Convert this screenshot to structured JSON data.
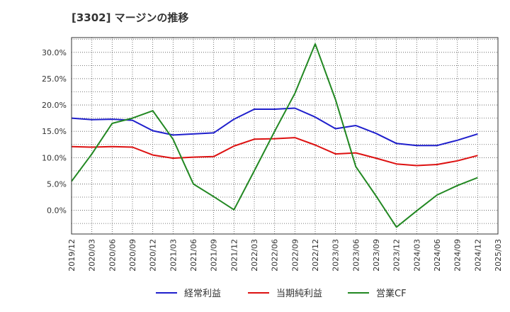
{
  "chart_data": {
    "type": "line",
    "title": "[3302]  マージンの推移",
    "xlabel": "",
    "ylabel": "",
    "x": [
      "2019/12",
      "2020/03",
      "2020/06",
      "2020/09",
      "2020/12",
      "2021/03",
      "2021/06",
      "2021/09",
      "2021/12",
      "2022/03",
      "2022/06",
      "2022/09",
      "2022/12",
      "2023/03",
      "2023/06",
      "2023/09",
      "2023/12",
      "2024/03",
      "2024/06",
      "2024/09",
      "2024/12",
      "2025/03"
    ],
    "y_ticks": [
      "30.0%",
      "25.0%",
      "20.0%",
      "15.0%",
      "10.0%",
      "5.0%",
      "0.0%"
    ],
    "y_tick_values": [
      30,
      25,
      20,
      15,
      10,
      5,
      0
    ],
    "ylim": [
      -4.5,
      32.8
    ],
    "grid": true,
    "legend_position": "bottom",
    "series": [
      {
        "name": "経常利益",
        "color": "#1f1fcc",
        "points": [
          [
            "2019/12",
            17.5
          ],
          [
            "2020/03",
            17.2
          ],
          [
            "2020/06",
            17.3
          ],
          [
            "2020/09",
            17.1
          ],
          [
            "2020/12",
            15.1
          ],
          [
            "2021/03",
            14.3
          ],
          [
            "2021/06",
            14.5
          ],
          [
            "2021/09",
            14.7
          ],
          [
            "2021/12",
            17.3
          ],
          [
            "2022/03",
            19.2
          ],
          [
            "2022/06",
            19.2
          ],
          [
            "2022/09",
            19.4
          ],
          [
            "2022/12",
            17.7
          ],
          [
            "2023/03",
            15.5
          ],
          [
            "2023/06",
            16.1
          ],
          [
            "2023/09",
            14.6
          ],
          [
            "2023/12",
            12.7
          ],
          [
            "2024/03",
            12.3
          ],
          [
            "2024/06",
            12.3
          ],
          [
            "2024/09",
            13.3
          ],
          [
            "2024/12",
            14.5
          ]
        ]
      },
      {
        "name": "当期純利益",
        "color": "#dd1111",
        "points": [
          [
            "2019/12",
            12.1
          ],
          [
            "2020/03",
            12.0
          ],
          [
            "2020/06",
            12.1
          ],
          [
            "2020/09",
            12.0
          ],
          [
            "2020/12",
            10.5
          ],
          [
            "2021/03",
            9.9
          ],
          [
            "2021/06",
            10.1
          ],
          [
            "2021/09",
            10.2
          ],
          [
            "2021/12",
            12.2
          ],
          [
            "2022/03",
            13.5
          ],
          [
            "2022/06",
            13.6
          ],
          [
            "2022/09",
            13.8
          ],
          [
            "2022/12",
            12.4
          ],
          [
            "2023/03",
            10.7
          ],
          [
            "2023/06",
            10.9
          ],
          [
            "2023/09",
            9.9
          ],
          [
            "2023/12",
            8.8
          ],
          [
            "2024/03",
            8.5
          ],
          [
            "2024/06",
            8.7
          ],
          [
            "2024/09",
            9.4
          ],
          [
            "2024/12",
            10.4
          ]
        ]
      },
      {
        "name": "営業CF",
        "color": "#228822",
        "points": [
          [
            "2019/12",
            5.5
          ],
          [
            "2020/03",
            10.7
          ],
          [
            "2020/06",
            16.5
          ],
          [
            "2020/09",
            17.5
          ],
          [
            "2020/12",
            18.9
          ],
          [
            "2021/03",
            13.5
          ],
          [
            "2021/06",
            5.0
          ],
          [
            "2021/09",
            2.6
          ],
          [
            "2021/12",
            0.1
          ],
          [
            "2022/03",
            7.5
          ],
          [
            "2022/06",
            15.0
          ],
          [
            "2022/09",
            22.2
          ],
          [
            "2022/12",
            31.6
          ],
          [
            "2023/03",
            21.0
          ],
          [
            "2023/06",
            8.3
          ],
          [
            "2023/09",
            2.7
          ],
          [
            "2023/12",
            -3.2
          ],
          [
            "2024/03",
            -0.1
          ],
          [
            "2024/06",
            2.9
          ],
          [
            "2024/09",
            4.7
          ],
          [
            "2024/12",
            6.2
          ]
        ]
      }
    ]
  }
}
